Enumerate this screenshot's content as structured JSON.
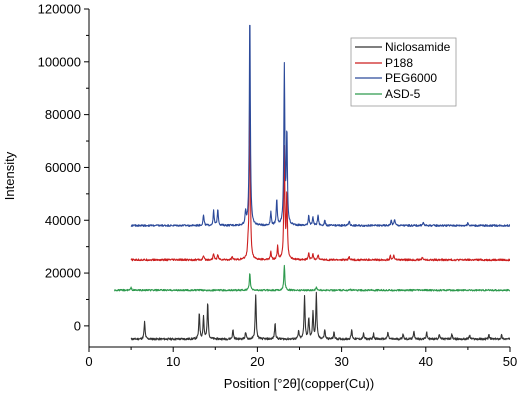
{
  "chart_data": {
    "type": "line",
    "title": "",
    "xlabel": "Position [°2θ](copper(Cu))",
    "ylabel": "Intensity",
    "xlim": [
      0,
      50
    ],
    "ylim": [
      -8000,
      120000
    ],
    "x_ticks": [
      0,
      10,
      20,
      30,
      40,
      50
    ],
    "y_ticks": [
      0,
      20000,
      40000,
      60000,
      80000,
      100000,
      120000
    ],
    "x_tick_labels": [
      "0",
      "10",
      "20",
      "30",
      "40",
      "50"
    ],
    "y_tick_labels": [
      "0",
      "20000",
      "40000",
      "60000",
      "80000",
      "100000",
      "120000"
    ],
    "grid": false,
    "legend_position": "top-right",
    "series": [
      {
        "name": "Niclosamide",
        "color": "#333333",
        "x_range": [
          5,
          50
        ],
        "baseline": -5000,
        "noise": 400,
        "peaks": [
          [
            6.6,
            6500
          ],
          [
            13.1,
            10000
          ],
          [
            13.6,
            8500
          ],
          [
            14.1,
            14000
          ],
          [
            17.1,
            3500
          ],
          [
            18.6,
            2500
          ],
          [
            19.8,
            17000
          ],
          [
            22.1,
            6000
          ],
          [
            24.9,
            3000
          ],
          [
            25.6,
            16500
          ],
          [
            26.1,
            8000
          ],
          [
            26.6,
            10000
          ],
          [
            27.0,
            17000
          ],
          [
            28.0,
            3500
          ],
          [
            29.1,
            2500
          ],
          [
            31.2,
            3500
          ],
          [
            32.6,
            2000
          ],
          [
            33.8,
            2000
          ],
          [
            35.5,
            2500
          ],
          [
            37.3,
            2000
          ],
          [
            38.6,
            3000
          ],
          [
            40.1,
            2500
          ],
          [
            41.6,
            2000
          ],
          [
            43.1,
            1800
          ],
          [
            45.2,
            1500
          ],
          [
            47.5,
            1500
          ],
          [
            49.0,
            1500
          ]
        ]
      },
      {
        "name": "P188",
        "color": "#cc1f1f",
        "x_range": [
          5,
          50
        ],
        "baseline": 25000,
        "noise": 350,
        "peaks": [
          [
            13.6,
            1500
          ],
          [
            14.8,
            2500
          ],
          [
            15.3,
            2000
          ],
          [
            17.0,
            1200
          ],
          [
            18.9,
            4500
          ],
          [
            19.1,
            62000
          ],
          [
            21.6,
            3000
          ],
          [
            22.4,
            5000
          ],
          [
            23.2,
            42000
          ],
          [
            23.5,
            25000
          ],
          [
            26.1,
            2500
          ],
          [
            26.6,
            2500
          ],
          [
            27.2,
            2000
          ],
          [
            30.9,
            1200
          ],
          [
            35.8,
            1500
          ],
          [
            36.2,
            1800
          ],
          [
            39.6,
            1000
          ]
        ]
      },
      {
        "name": "PEG6000",
        "color": "#2c4a9a",
        "x_range": [
          5,
          50
        ],
        "baseline": 38000,
        "noise": 350,
        "peaks": [
          [
            13.6,
            4000
          ],
          [
            14.8,
            5500
          ],
          [
            15.3,
            6500
          ],
          [
            18.6,
            5000
          ],
          [
            19.1,
            82000
          ],
          [
            21.6,
            5000
          ],
          [
            22.3,
            10000
          ],
          [
            23.2,
            60000
          ],
          [
            23.5,
            35000
          ],
          [
            26.1,
            4000
          ],
          [
            26.6,
            3000
          ],
          [
            27.2,
            4000
          ],
          [
            28.0,
            2000
          ],
          [
            30.9,
            1800
          ],
          [
            35.9,
            2000
          ],
          [
            36.3,
            2500
          ],
          [
            39.7,
            1200
          ],
          [
            45.0,
            1000
          ]
        ]
      },
      {
        "name": "ASD-5",
        "color": "#2e9a4e",
        "x_range": [
          3,
          50
        ],
        "baseline": 13500,
        "noise": 300,
        "peaks": [
          [
            5.0,
            1000
          ],
          [
            19.1,
            6500
          ],
          [
            23.2,
            9500
          ],
          [
            27.0,
            1200
          ],
          [
            31.0,
            500
          ]
        ]
      }
    ]
  }
}
